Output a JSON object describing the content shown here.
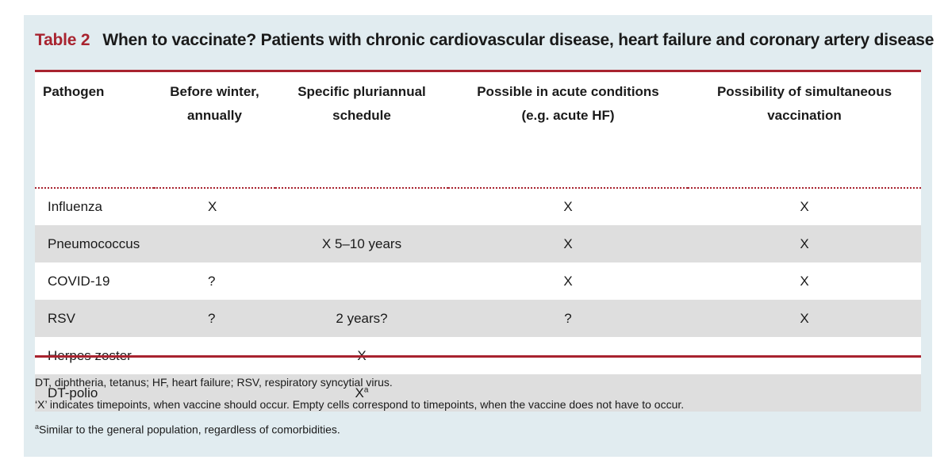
{
  "caption": {
    "label": "Table 2",
    "title": "When to vaccinate? Patients with chronic cardiovascular disease, heart failure and coronary artery disease"
  },
  "table": {
    "headers": [
      [
        "Pathogen"
      ],
      [
        "Before winter,",
        "annually"
      ],
      [
        "Specific pluriannual",
        "schedule"
      ],
      [
        "Possible in acute conditions",
        "(e.g. acute HF)"
      ],
      [
        "Possibility of simultaneous",
        "vaccination"
      ]
    ],
    "rows": [
      {
        "pathogen": "Influenza",
        "before_winter": "X",
        "schedule": "",
        "schedule_sup": "",
        "acute": "X",
        "simultaneous": "X"
      },
      {
        "pathogen": "Pneumococcus",
        "before_winter": "",
        "schedule": "X 5–10 years",
        "schedule_sup": "",
        "acute": "X",
        "simultaneous": "X"
      },
      {
        "pathogen": "COVID-19",
        "before_winter": "?",
        "schedule": "",
        "schedule_sup": "",
        "acute": "X",
        "simultaneous": "X"
      },
      {
        "pathogen": "RSV",
        "before_winter": "?",
        "schedule": "2 years?",
        "schedule_sup": "",
        "acute": "?",
        "simultaneous": "X"
      },
      {
        "pathogen": "Herpes zoster",
        "before_winter": "",
        "schedule": "X",
        "schedule_sup": "",
        "acute": "",
        "simultaneous": ""
      },
      {
        "pathogen": "DT-polio",
        "before_winter": "",
        "schedule": "X",
        "schedule_sup": "a",
        "acute": "",
        "simultaneous": ""
      }
    ]
  },
  "footnotes": {
    "abbreviations": "DT, diphtheria, tetanus; HF, heart failure; RSV, respiratory syncytial virus.",
    "x_meaning": "‘X’ indicates timepoints, when vaccine should occur. Empty cells correspond to timepoints, when the vaccine does not have to occur.",
    "a_marker": "a",
    "a_text": "Similar to the general population, regardless of comorbidities."
  },
  "colors": {
    "accent": "#a8232f",
    "panel_background": "#e1ecf0",
    "stripe": "#dedede"
  }
}
